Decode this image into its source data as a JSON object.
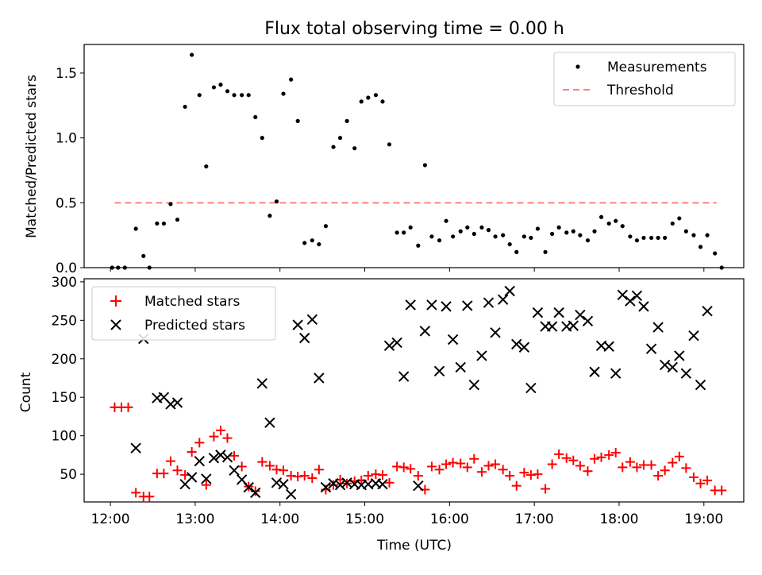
{
  "title": "Flux total observing time = 0.00 h",
  "colors": {
    "measurement": "#000000",
    "threshold": "#ff7f7f",
    "matched": "#ff0000",
    "predicted": "#000000"
  },
  "chart_data": [
    {
      "type": "scatter",
      "ylabel": "Matched/Predicted stars",
      "xlim": [
        11.69,
        19.47
      ],
      "ylim": [
        0,
        1.72
      ],
      "yticks": [
        0,
        0.5,
        1.0,
        1.5
      ],
      "ytick_labels": [
        "0.0",
        "0.5",
        "1.0",
        "1.5"
      ],
      "legend": {
        "position": "top-right",
        "entries": [
          "Measurements",
          "Threshold"
        ]
      },
      "threshold": {
        "name": "Threshold",
        "value": 0.5,
        "x_range": [
          12.05,
          19.15
        ]
      },
      "series": [
        {
          "name": "Measurements",
          "points": [
            [
              12.02,
              0.0
            ],
            [
              12.09,
              0.0
            ],
            [
              12.17,
              0.0
            ],
            [
              12.3,
              0.3
            ],
            [
              12.39,
              0.09
            ],
            [
              12.46,
              0.0
            ],
            [
              12.55,
              0.34
            ],
            [
              12.63,
              0.34
            ],
            [
              12.71,
              0.49
            ],
            [
              12.79,
              0.37
            ],
            [
              12.88,
              1.24
            ],
            [
              12.96,
              1.64
            ],
            [
              13.05,
              1.33
            ],
            [
              13.13,
              0.78
            ],
            [
              13.22,
              1.39
            ],
            [
              13.3,
              1.41
            ],
            [
              13.38,
              1.36
            ],
            [
              13.46,
              1.33
            ],
            [
              13.55,
              1.33
            ],
            [
              13.63,
              1.33
            ],
            [
              13.71,
              1.16
            ],
            [
              13.79,
              1.0
            ],
            [
              13.88,
              0.4
            ],
            [
              13.96,
              0.51
            ],
            [
              14.04,
              1.34
            ],
            [
              14.13,
              1.45
            ],
            [
              14.21,
              1.13
            ],
            [
              14.29,
              0.19
            ],
            [
              14.38,
              0.21
            ],
            [
              14.46,
              0.18
            ],
            [
              14.54,
              0.32
            ],
            [
              14.63,
              0.93
            ],
            [
              14.71,
              1.0
            ],
            [
              14.79,
              1.13
            ],
            [
              14.88,
              0.92
            ],
            [
              14.96,
              1.28
            ],
            [
              15.04,
              1.31
            ],
            [
              15.13,
              1.33
            ],
            [
              15.21,
              1.28
            ],
            [
              15.29,
              0.95
            ],
            [
              15.38,
              0.27
            ],
            [
              15.46,
              0.27
            ],
            [
              15.54,
              0.31
            ],
            [
              15.63,
              0.17
            ],
            [
              15.71,
              0.79
            ],
            [
              15.79,
              0.24
            ],
            [
              15.88,
              0.21
            ],
            [
              15.96,
              0.36
            ],
            [
              16.04,
              0.24
            ],
            [
              16.13,
              0.28
            ],
            [
              16.21,
              0.31
            ],
            [
              16.29,
              0.26
            ],
            [
              16.38,
              0.31
            ],
            [
              16.46,
              0.29
            ],
            [
              16.54,
              0.24
            ],
            [
              16.63,
              0.25
            ],
            [
              16.71,
              0.18
            ],
            [
              16.79,
              0.12
            ],
            [
              16.88,
              0.24
            ],
            [
              16.96,
              0.23
            ],
            [
              17.04,
              0.3
            ],
            [
              17.13,
              0.12
            ],
            [
              17.21,
              0.26
            ],
            [
              17.29,
              0.31
            ],
            [
              17.38,
              0.27
            ],
            [
              17.46,
              0.28
            ],
            [
              17.54,
              0.25
            ],
            [
              17.63,
              0.21
            ],
            [
              17.71,
              0.28
            ],
            [
              17.79,
              0.39
            ],
            [
              17.88,
              0.34
            ],
            [
              17.96,
              0.36
            ],
            [
              18.04,
              0.32
            ],
            [
              18.13,
              0.24
            ],
            [
              18.21,
              0.21
            ],
            [
              18.29,
              0.23
            ],
            [
              18.38,
              0.23
            ],
            [
              18.46,
              0.23
            ],
            [
              18.54,
              0.23
            ],
            [
              18.63,
              0.34
            ],
            [
              18.71,
              0.38
            ],
            [
              18.79,
              0.28
            ],
            [
              18.88,
              0.25
            ],
            [
              18.96,
              0.16
            ],
            [
              19.04,
              0.25
            ],
            [
              19.13,
              0.11
            ],
            [
              19.21,
              0.0
            ]
          ]
        }
      ]
    },
    {
      "type": "scatter",
      "xlabel": "Time (UTC)",
      "ylabel": "Count",
      "xlim": [
        11.69,
        19.47
      ],
      "ylim": [
        14,
        304
      ],
      "xticks": [
        12,
        13,
        14,
        15,
        16,
        17,
        18,
        19
      ],
      "xtick_labels": [
        "12:00",
        "13:00",
        "14:00",
        "15:00",
        "16:00",
        "17:00",
        "18:00",
        "19:00"
      ],
      "yticks": [
        50,
        100,
        150,
        200,
        250,
        300
      ],
      "ytick_labels": [
        "50",
        "100",
        "150",
        "200",
        "250",
        "300"
      ],
      "legend": {
        "position": "top-left",
        "entries": [
          "Matched stars",
          "Predicted stars"
        ]
      },
      "series": [
        {
          "name": "Matched stars",
          "marker": "+",
          "points": [
            [
              12.05,
              137
            ],
            [
              12.13,
              137
            ],
            [
              12.21,
              137
            ],
            [
              12.3,
              26
            ],
            [
              12.39,
              21
            ],
            [
              12.46,
              21
            ],
            [
              12.55,
              51
            ],
            [
              12.63,
              51
            ],
            [
              12.71,
              67
            ],
            [
              12.79,
              55
            ],
            [
              12.88,
              49
            ],
            [
              12.96,
              79
            ],
            [
              13.05,
              91
            ],
            [
              13.13,
              36
            ],
            [
              13.22,
              99
            ],
            [
              13.3,
              107
            ],
            [
              13.38,
              97
            ],
            [
              13.46,
              74
            ],
            [
              13.55,
              60
            ],
            [
              13.63,
              34
            ],
            [
              13.71,
              28
            ],
            [
              13.79,
              66
            ],
            [
              13.88,
              61
            ],
            [
              13.96,
              56
            ],
            [
              14.04,
              55
            ],
            [
              14.13,
              48
            ],
            [
              14.21,
              47
            ],
            [
              14.29,
              48
            ],
            [
              14.38,
              45
            ],
            [
              14.46,
              56
            ],
            [
              14.54,
              30
            ],
            [
              14.63,
              36
            ],
            [
              14.71,
              43
            ],
            [
              14.79,
              38
            ],
            [
              14.88,
              41
            ],
            [
              14.96,
              42
            ],
            [
              15.04,
              48
            ],
            [
              15.13,
              50
            ],
            [
              15.21,
              49
            ],
            [
              15.29,
              39
            ],
            [
              15.38,
              60
            ],
            [
              15.46,
              59
            ],
            [
              15.54,
              57
            ],
            [
              15.63,
              48
            ],
            [
              15.71,
              30
            ],
            [
              15.79,
              60
            ],
            [
              15.88,
              56
            ],
            [
              15.96,
              63
            ],
            [
              16.04,
              65
            ],
            [
              16.13,
              64
            ],
            [
              16.21,
              59
            ],
            [
              16.29,
              70
            ],
            [
              16.38,
              53
            ],
            [
              16.46,
              61
            ],
            [
              16.54,
              63
            ],
            [
              16.63,
              56
            ],
            [
              16.71,
              48
            ],
            [
              16.79,
              35
            ],
            [
              16.88,
              52
            ],
            [
              16.96,
              49
            ],
            [
              17.04,
              50
            ],
            [
              17.13,
              31
            ],
            [
              17.21,
              63
            ],
            [
              17.29,
              76
            ],
            [
              17.38,
              71
            ],
            [
              17.46,
              68
            ],
            [
              17.54,
              61
            ],
            [
              17.63,
              54
            ],
            [
              17.71,
              70
            ],
            [
              17.79,
              72
            ],
            [
              17.88,
              75
            ],
            [
              17.96,
              78
            ],
            [
              18.04,
              59
            ],
            [
              18.13,
              66
            ],
            [
              18.21,
              59
            ],
            [
              18.29,
              62
            ],
            [
              18.38,
              62
            ],
            [
              18.46,
              48
            ],
            [
              18.54,
              55
            ],
            [
              18.63,
              65
            ],
            [
              18.71,
              73
            ],
            [
              18.79,
              58
            ],
            [
              18.88,
              46
            ],
            [
              18.96,
              38
            ],
            [
              19.04,
              42
            ],
            [
              19.13,
              29
            ],
            [
              19.21,
              29
            ]
          ]
        },
        {
          "name": "Predicted stars",
          "marker": "x",
          "points": [
            [
              12.3,
              84
            ],
            [
              12.39,
              226
            ],
            [
              12.55,
              149
            ],
            [
              12.63,
              150
            ],
            [
              12.71,
              141
            ],
            [
              12.79,
              143
            ],
            [
              12.88,
              37
            ],
            [
              12.96,
              46
            ],
            [
              13.05,
              67
            ],
            [
              13.13,
              44
            ],
            [
              13.22,
              71
            ],
            [
              13.3,
              75
            ],
            [
              13.38,
              72
            ],
            [
              13.46,
              55
            ],
            [
              13.55,
              43
            ],
            [
              13.63,
              33
            ],
            [
              13.71,
              26
            ],
            [
              13.79,
              168
            ],
            [
              13.88,
              117
            ],
            [
              13.96,
              39
            ],
            [
              14.04,
              37
            ],
            [
              14.13,
              24
            ],
            [
              14.21,
              244
            ],
            [
              14.29,
              227
            ],
            [
              14.38,
              251
            ],
            [
              14.46,
              175
            ],
            [
              14.54,
              33
            ],
            [
              14.63,
              38
            ],
            [
              14.71,
              36
            ],
            [
              14.79,
              39
            ],
            [
              14.88,
              37
            ],
            [
              14.96,
              36
            ],
            [
              15.04,
              37
            ],
            [
              15.13,
              38
            ],
            [
              15.21,
              37
            ],
            [
              15.29,
              217
            ],
            [
              15.38,
              221
            ],
            [
              15.46,
              177
            ],
            [
              15.54,
              270
            ],
            [
              15.63,
              35
            ],
            [
              15.71,
              236
            ],
            [
              15.79,
              270
            ],
            [
              15.88,
              184
            ],
            [
              15.96,
              268
            ],
            [
              16.04,
              225
            ],
            [
              16.13,
              189
            ],
            [
              16.21,
              269
            ],
            [
              16.29,
              166
            ],
            [
              16.38,
              204
            ],
            [
              16.46,
              273
            ],
            [
              16.54,
              234
            ],
            [
              16.63,
              277
            ],
            [
              16.71,
              288
            ],
            [
              16.79,
              219
            ],
            [
              16.88,
              215
            ],
            [
              16.96,
              162
            ],
            [
              17.04,
              260
            ],
            [
              17.13,
              242
            ],
            [
              17.21,
              242
            ],
            [
              17.29,
              260
            ],
            [
              17.38,
              242
            ],
            [
              17.46,
              243
            ],
            [
              17.54,
              257
            ],
            [
              17.63,
              249
            ],
            [
              17.71,
              183
            ],
            [
              17.79,
              217
            ],
            [
              17.88,
              216
            ],
            [
              17.96,
              181
            ],
            [
              18.04,
              283
            ],
            [
              18.13,
              275
            ],
            [
              18.21,
              282
            ],
            [
              18.29,
              268
            ],
            [
              18.38,
              213
            ],
            [
              18.46,
              241
            ],
            [
              18.54,
              192
            ],
            [
              18.63,
              189
            ],
            [
              18.71,
              204
            ],
            [
              18.79,
              181
            ],
            [
              18.88,
              230
            ],
            [
              18.96,
              166
            ],
            [
              19.04,
              262
            ]
          ]
        }
      ]
    }
  ]
}
